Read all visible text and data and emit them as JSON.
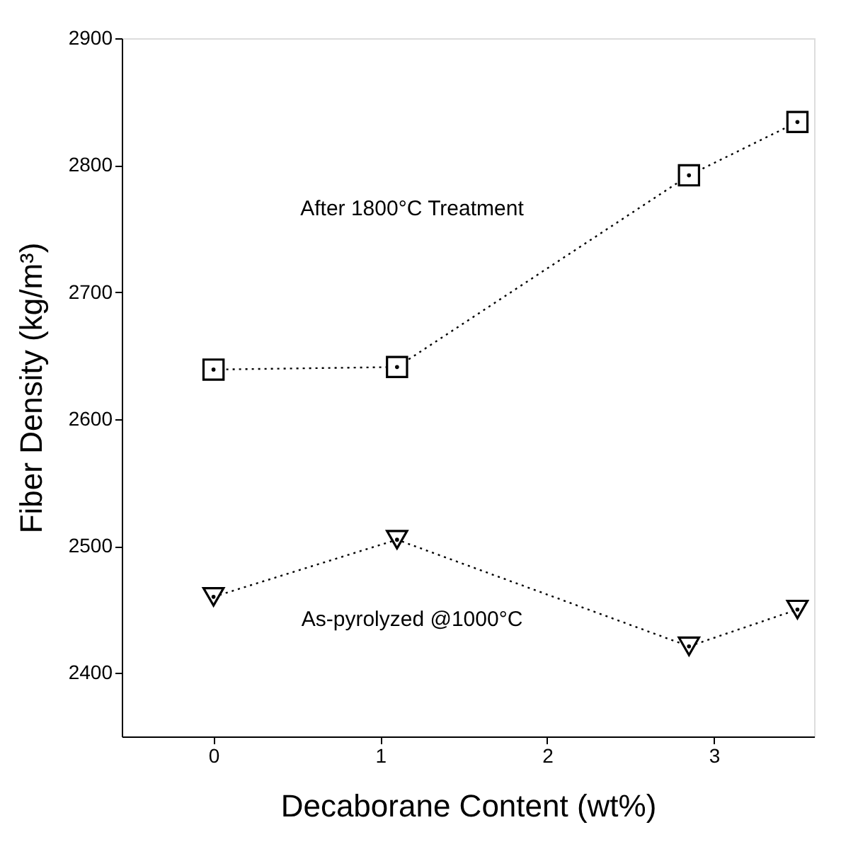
{
  "chart_data": {
    "type": "line",
    "xlabel": "Decaborane Content (wt%)",
    "ylabel": "Fiber Density (kg/m³)",
    "xlim": [
      -0.55,
      3.6
    ],
    "xticks": [
      0,
      1,
      2,
      3
    ],
    "ylim": [
      2350,
      2900
    ],
    "yticks": [
      2400,
      2500,
      2600,
      2700,
      2800,
      2900
    ],
    "series": [
      {
        "color": "#000000",
        "marker": "square",
        "x": [
          0,
          1.1,
          2.85,
          3.5
        ],
        "values": [
          2639,
          2641,
          2792,
          2834
        ]
      },
      {
        "color": "#000000",
        "marker": "triangle",
        "x": [
          0,
          1.1,
          2.85,
          3.5
        ],
        "values": [
          2460,
          2505,
          2421,
          2450
        ]
      }
    ],
    "annotations": [
      "After 1800°C Treatment",
      "As-pyrolyzed @1000°C"
    ],
    "line_style": "dotted",
    "grid": false
  }
}
